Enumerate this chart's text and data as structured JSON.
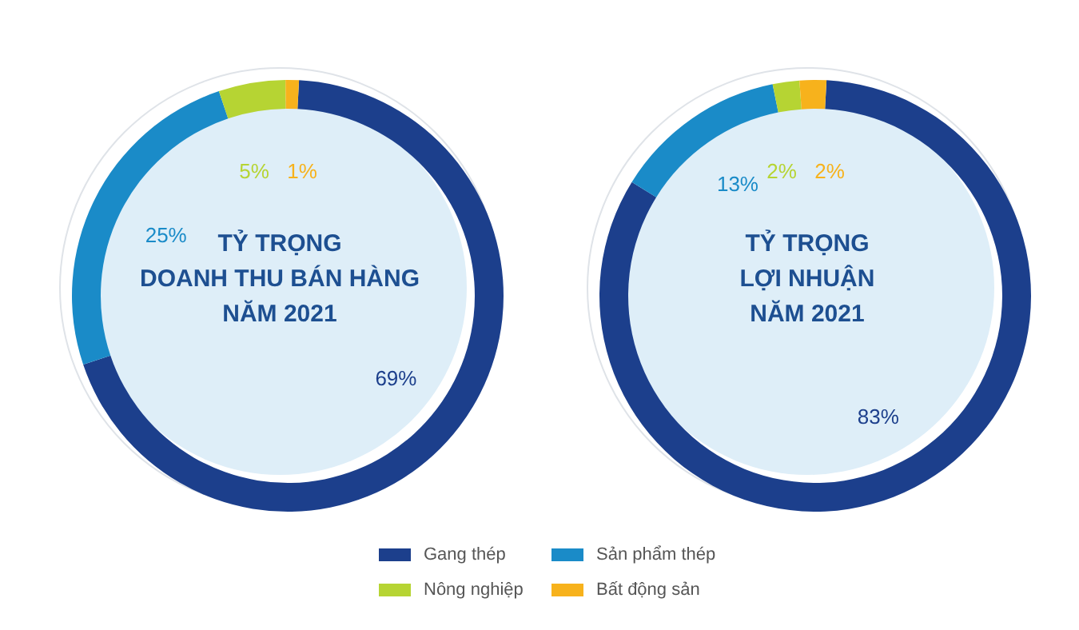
{
  "chart_data": [
    {
      "type": "donut",
      "title": "TỶ TRỌNG\nDOANH THU BÁN HÀNG\nNĂM 2021",
      "categories": [
        "Gang thép",
        "Sản phẩm thép",
        "Nông nghiệp",
        "Bất động sản"
      ],
      "values": [
        69,
        25,
        5,
        1
      ],
      "colors": [
        "#1c3f8c",
        "#1a8bc8",
        "#b6d433",
        "#f7b21c"
      ],
      "value_labels": [
        "69%",
        "25%",
        "5%",
        "1%"
      ],
      "legend": "bottom"
    },
    {
      "type": "donut",
      "title": "TỶ TRỌNG\nLỢI NHUẬN\nNĂM 2021",
      "categories": [
        null,
        null,
        null,
        null
      ],
      "values": [
        83,
        13,
        2,
        2
      ],
      "colors": [
        "#1c3f8c",
        "#1a8bc8",
        "#b6d433",
        "#f7b21c"
      ],
      "value_labels": [
        "83%",
        "13%",
        "2%",
        "2%"
      ],
      "legend": false
    }
  ]
}
